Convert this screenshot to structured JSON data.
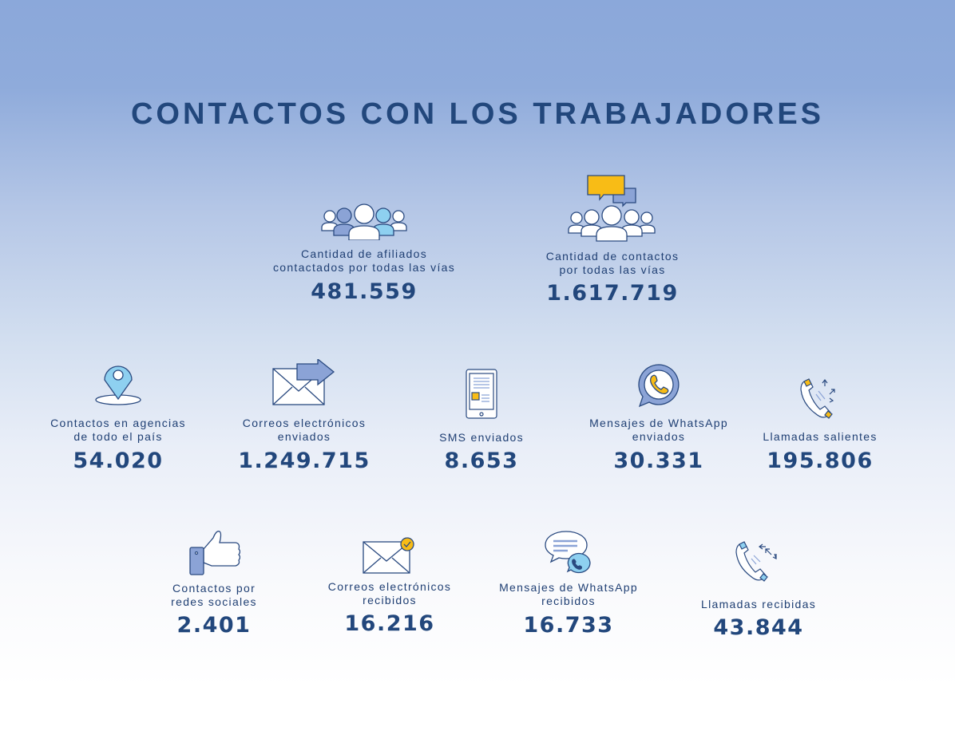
{
  "title": "CONTACTOS CON LOS TRABAJADORES",
  "items": [
    {
      "icon": "people-group-icon",
      "label1": "Cantidad de afiliados",
      "label2": "contactados por todas las vías",
      "value": "481.559"
    },
    {
      "icon": "people-chat-icon",
      "label1": "Cantidad de contactos",
      "label2": "por todas las vías",
      "value": "1.617.719"
    },
    {
      "icon": "location-pin-icon",
      "label1": "Contactos en agencias",
      "label2": "de todo el país",
      "value": "54.020"
    },
    {
      "icon": "email-sent-icon",
      "label1": "Correos electrónicos",
      "label2": "enviados",
      "value": "1.249.715"
    },
    {
      "icon": "sms-phone-icon",
      "label1": "SMS enviados",
      "label2": "",
      "value": "8.653"
    },
    {
      "icon": "whatsapp-icon",
      "label1": "Mensajes de WhatsApp",
      "label2": "enviados",
      "value": "30.331"
    },
    {
      "icon": "outgoing-call-icon",
      "label1": "Llamadas salientes",
      "label2": "",
      "value": "195.806"
    },
    {
      "icon": "thumbs-up-icon",
      "label1": "Contactos por",
      "label2": "redes sociales",
      "value": "2.401"
    },
    {
      "icon": "email-received-icon",
      "label1": "Correos electrónicos",
      "label2": "recibidos",
      "value": "16.216"
    },
    {
      "icon": "whatsapp-received-icon",
      "label1": "Mensajes de WhatsApp",
      "label2": "recibidos",
      "value": "16.733"
    },
    {
      "icon": "incoming-call-icon",
      "label1": "Llamadas recibidas",
      "label2": "",
      "value": "43.844"
    }
  ],
  "colors": {
    "navy": "#22477c",
    "light_blue": "#8ed0f0",
    "mid_blue": "#8ba3d6",
    "yellow": "#f8bc16"
  }
}
